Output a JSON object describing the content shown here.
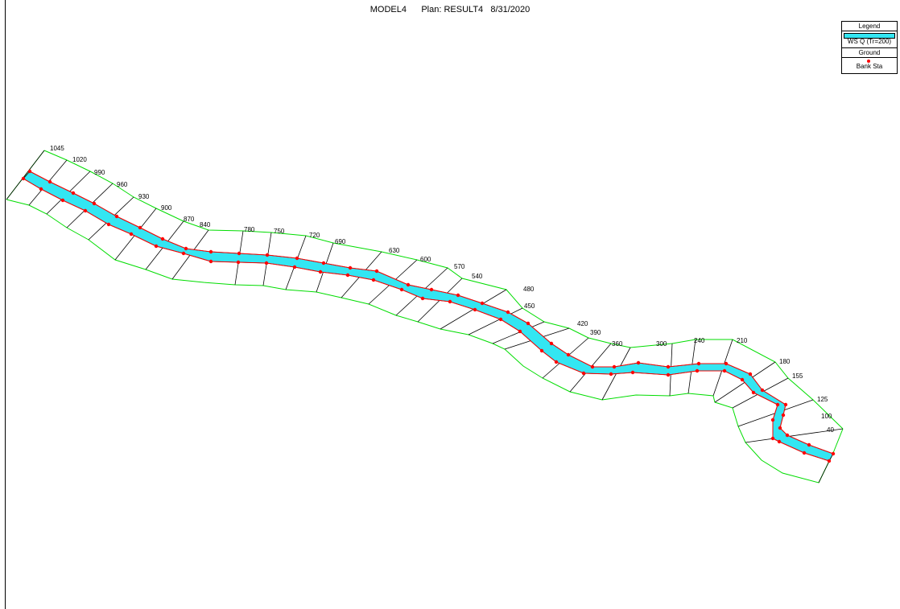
{
  "title": {
    "model": "MODEL4",
    "plan": "Plan: RESULT4",
    "date": "8/31/2020"
  },
  "legend": {
    "heading": "Legend",
    "water_surface": "WS Q (Tr=200)",
    "ground": "Ground",
    "bank_sta": "Bank Sta"
  },
  "colors": {
    "water": "#33e6f2",
    "ground": "#00dd00",
    "bank": "#ff0000",
    "xs_line": "#000000"
  },
  "cross_section_labels": [
    "1045",
    "1020",
    "990",
    "960",
    "930",
    "900",
    "870",
    "840",
    "780",
    "750",
    "720",
    "690",
    "630",
    "600",
    "570",
    "540",
    "480",
    "450",
    "420",
    "390",
    "360",
    "300",
    "240",
    "210",
    "180",
    "155",
    "125",
    "100",
    "40"
  ]
}
